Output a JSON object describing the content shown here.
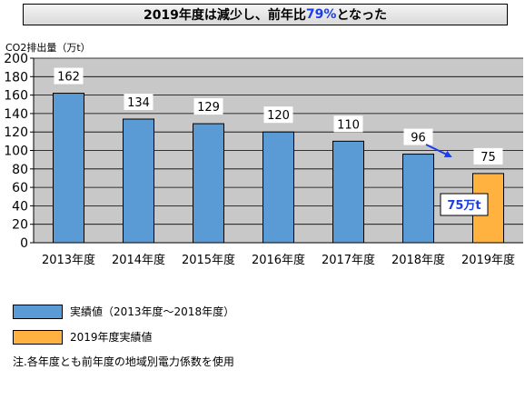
{
  "title": {
    "prefix": "2019年度は減少し、前年比",
    "highlight": "79%",
    "suffix": "となった"
  },
  "unit_label": "CO2排出量（万t）",
  "annotation": "75万t",
  "legend": [
    {
      "label": "実績値（2013年度～2018年度）",
      "color": "#5b9bd5"
    },
    {
      "label": "2019年度実績値",
      "color": "#ffb23f"
    }
  ],
  "note": "注.各年度とも前年度の地域別電力係数を使用",
  "colors": {
    "actual": "#5b9bd5",
    "current": "#ffb23f",
    "arrow": "#1a3ee6",
    "annotation_text": "#1a3ee6"
  },
  "chart_data": {
    "type": "bar",
    "categories": [
      "2013年度",
      "2014年度",
      "2015年度",
      "2016年度",
      "2017年度",
      "2018年度",
      "2019年度"
    ],
    "values": [
      162,
      134,
      129,
      120,
      110,
      96,
      75
    ],
    "data_labels": [
      "162",
      "134",
      "129",
      "120",
      "110",
      "96",
      "75"
    ],
    "y_ticks": [
      "0",
      "20",
      "40",
      "60",
      "80",
      "100",
      "120",
      "140",
      "160",
      "180",
      "200"
    ],
    "ylim": [
      0,
      200
    ],
    "ylabel": "CO2排出量（万t）",
    "grid": true
  }
}
